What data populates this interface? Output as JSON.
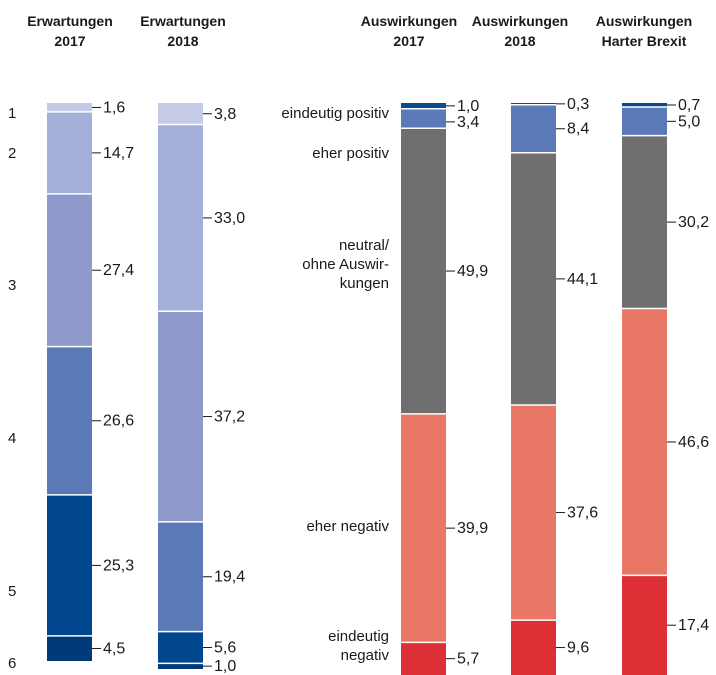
{
  "chart_data": {
    "type": "stacked-bar",
    "columns": [
      {
        "header_line1": "Erwartungen",
        "header_line2": "2017",
        "segments": [
          {
            "category": "1",
            "value": 1.6,
            "label": "1,6",
            "color": "#c5cbe6"
          },
          {
            "category": "2",
            "value": 14.7,
            "label": "14,7",
            "color": "#a4afd9"
          },
          {
            "category": "3",
            "value": 27.4,
            "label": "27,4",
            "color": "#8d9aca"
          },
          {
            "category": "4",
            "value": 26.6,
            "label": "26,6",
            "color": "#5b78b7"
          },
          {
            "category": "5",
            "value": 25.3,
            "label": "25,3",
            "color": "#00478f"
          },
          {
            "category": "6",
            "value": 4.5,
            "label": "4,5",
            "color": "#003a78"
          }
        ]
      },
      {
        "header_line1": "Erwartungen",
        "header_line2": "2018",
        "segments": [
          {
            "category": "1",
            "value": 3.8,
            "label": "3,8",
            "color": "#c5cbe6"
          },
          {
            "category": "2",
            "value": 33.0,
            "label": "33,0",
            "color": "#a4afd9"
          },
          {
            "category": "3",
            "value": 37.2,
            "label": "37,2",
            "color": "#8d9aca"
          },
          {
            "category": "4",
            "value": 19.4,
            "label": "19,4",
            "color": "#5b78b7"
          },
          {
            "category": "5",
            "value": 5.6,
            "label": "5,6",
            "color": "#00478f"
          },
          {
            "category": "6",
            "value": 1.0,
            "label": "1,0",
            "color": "#003a78"
          }
        ]
      },
      {
        "header_line1": "Auswirkungen",
        "header_line2": "2017",
        "segments": [
          {
            "category": "eindeutig positiv",
            "value": 1.0,
            "label": "1,0",
            "color": "#0b4a8f"
          },
          {
            "category": "eher positiv",
            "value": 3.4,
            "label": "3,4",
            "color": "#5b78b7"
          },
          {
            "category": "neutral/ ohne Auswirkungen",
            "value": 49.9,
            "label": "49,9",
            "color": "#6f6f6f"
          },
          {
            "category": "eher negativ",
            "value": 39.9,
            "label": "39,9",
            "color": "#e97766"
          },
          {
            "category": "eindeutig negativ",
            "value": 5.7,
            "label": "5,7",
            "color": "#dc2f36"
          }
        ]
      },
      {
        "header_line1": "Auswirkungen",
        "header_line2": "2018",
        "segments": [
          {
            "category": "eindeutig positiv",
            "value": 0.3,
            "label": "0,3",
            "color": "#0b4a8f"
          },
          {
            "category": "eher positiv",
            "value": 8.4,
            "label": "8,4",
            "color": "#5b78b7"
          },
          {
            "category": "neutral/ ohne Auswirkungen",
            "value": 44.1,
            "label": "44,1",
            "color": "#6f6f6f"
          },
          {
            "category": "eher negativ",
            "value": 37.6,
            "label": "37,6",
            "color": "#e97766"
          },
          {
            "category": "eindeutig negativ",
            "value": 9.6,
            "label": "9,6",
            "color": "#dc2f36"
          }
        ]
      },
      {
        "header_line1": "Auswirkungen",
        "header_line2": "Harter Brexit",
        "segments": [
          {
            "category": "eindeutig positiv",
            "value": 0.7,
            "label": "0,7",
            "color": "#0b4a8f"
          },
          {
            "category": "eher positiv",
            "value": 5.0,
            "label": "5,0",
            "color": "#5b78b7"
          },
          {
            "category": "neutral/ ohne Auswirkungen",
            "value": 30.2,
            "label": "30,2",
            "color": "#6f6f6f"
          },
          {
            "category": "eher negativ",
            "value": 46.6,
            "label": "46,6",
            "color": "#e97766"
          },
          {
            "category": "eindeutig negativ",
            "value": 17.4,
            "label": "17,4",
            "color": "#dc2f36"
          }
        ]
      }
    ],
    "scale_labels": [
      "1",
      "2",
      "3",
      "4",
      "5",
      "6"
    ],
    "category_labels": [
      {
        "lines": [
          "eindeutig positiv"
        ]
      },
      {
        "lines": [
          "eher positiv"
        ]
      },
      {
        "lines": [
          "neutral/",
          "ohne Auswir-",
          "kungen"
        ]
      },
      {
        "lines": [
          "eher negativ"
        ]
      },
      {
        "lines": [
          "eindeutig",
          "negativ"
        ]
      }
    ]
  }
}
